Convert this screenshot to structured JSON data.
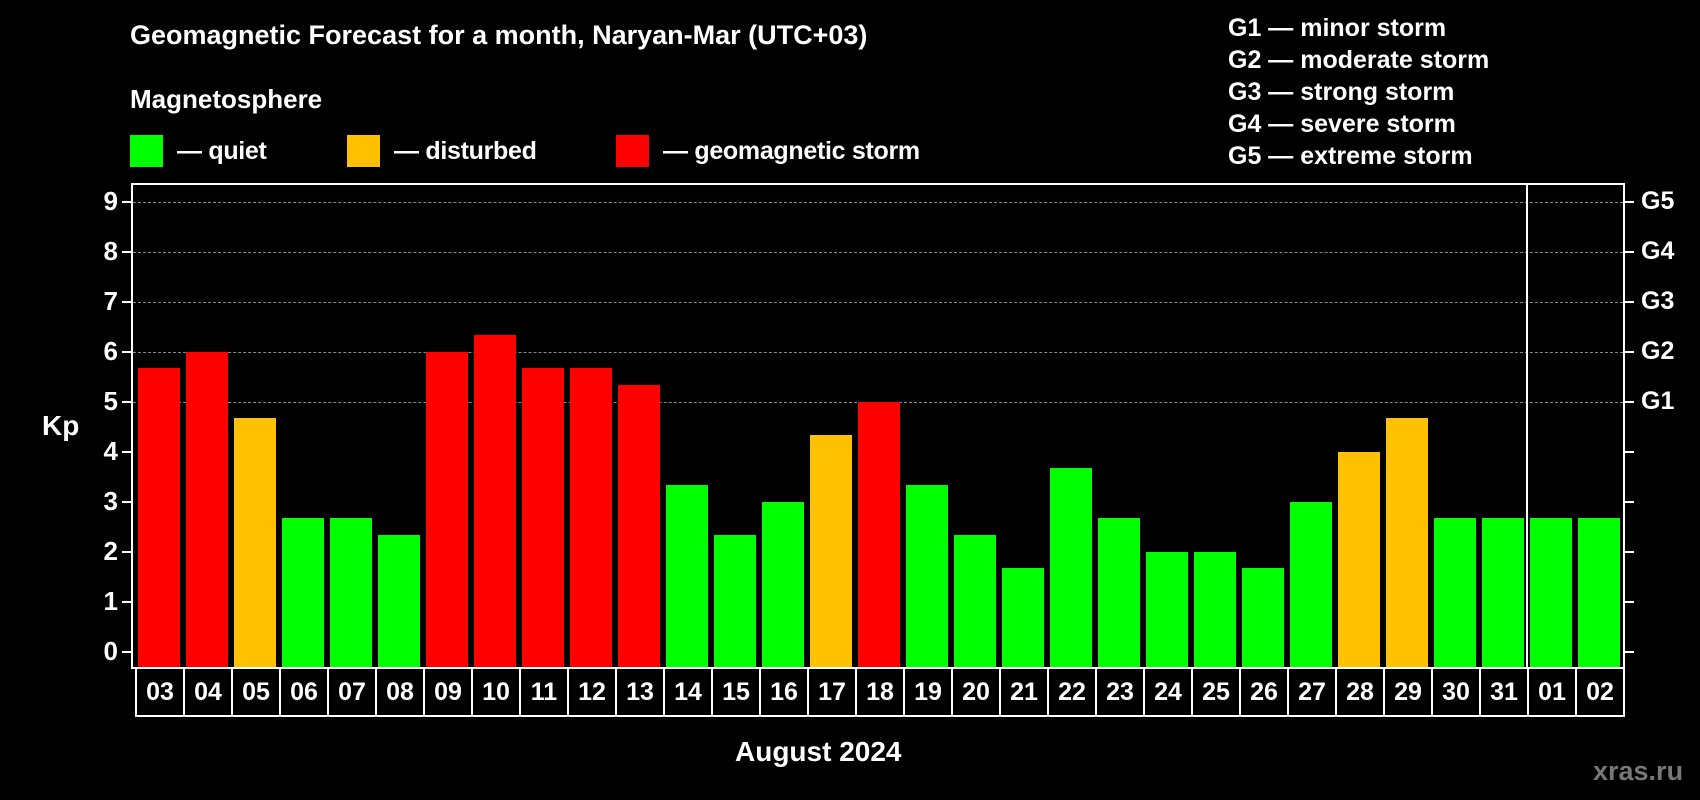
{
  "header": {
    "title": "Geomagnetic Forecast for a month, Naryan-Mar (UTC+03)",
    "subtitle": "Magnetosphere"
  },
  "legend": [
    {
      "label": "— quiet",
      "color": "#00ff00"
    },
    {
      "label": "— disturbed",
      "color": "#ffc000"
    },
    {
      "label": "— geomagnetic storm",
      "color": "#ff0000"
    }
  ],
  "g_legend": [
    "G1 — minor storm",
    "G2 — moderate storm",
    "G3 — strong storm",
    "G4 — severe storm",
    "G5 — extreme storm"
  ],
  "axes": {
    "y_label": "Kp",
    "y_ticks": [
      "0",
      "1",
      "2",
      "3",
      "4",
      "5",
      "6",
      "7",
      "8",
      "9"
    ],
    "right_ticks": [
      "G1",
      "G2",
      "G3",
      "G4",
      "G5"
    ],
    "x_label": "August 2024"
  },
  "watermark": "xras.ru",
  "chart_data": {
    "type": "bar",
    "title": "Geomagnetic Forecast for a month, Naryan-Mar (UTC+03)",
    "subtitle": "Magnetosphere",
    "xlabel": "August 2024",
    "ylabel": "Kp",
    "ylim": [
      0,
      9
    ],
    "grid": {
      "y_dashed_at": [
        5,
        6,
        7,
        8,
        9
      ]
    },
    "secondary_y": {
      "labels": {
        "5": "G1",
        "6": "G2",
        "7": "G3",
        "8": "G4",
        "9": "G5"
      }
    },
    "categories": [
      "03",
      "04",
      "05",
      "06",
      "07",
      "08",
      "09",
      "10",
      "11",
      "12",
      "13",
      "14",
      "15",
      "16",
      "17",
      "18",
      "19",
      "20",
      "21",
      "22",
      "23",
      "24",
      "25",
      "26",
      "27",
      "28",
      "29",
      "30",
      "31",
      "01",
      "02"
    ],
    "values": [
      5.67,
      6.0,
      4.67,
      2.67,
      2.67,
      2.33,
      6.0,
      6.33,
      5.67,
      5.67,
      5.33,
      3.33,
      2.33,
      3.0,
      4.33,
      5.0,
      3.33,
      2.33,
      1.67,
      3.67,
      2.67,
      2.0,
      2.0,
      1.67,
      3.0,
      4.0,
      4.67,
      2.67,
      2.67,
      2.67,
      2.67
    ],
    "status": [
      "storm",
      "storm",
      "disturbed",
      "quiet",
      "quiet",
      "quiet",
      "storm",
      "storm",
      "storm",
      "storm",
      "storm",
      "quiet",
      "quiet",
      "quiet",
      "disturbed",
      "storm",
      "quiet",
      "quiet",
      "quiet",
      "quiet",
      "quiet",
      "quiet",
      "quiet",
      "quiet",
      "quiet",
      "disturbed",
      "disturbed",
      "quiet",
      "quiet",
      "quiet",
      "quiet"
    ],
    "colors": {
      "quiet": "#00ff00",
      "disturbed": "#ffc000",
      "storm": "#ff0000"
    },
    "month_boundary_after": "31",
    "legend": [
      "quiet",
      "disturbed",
      "geomagnetic storm"
    ]
  }
}
